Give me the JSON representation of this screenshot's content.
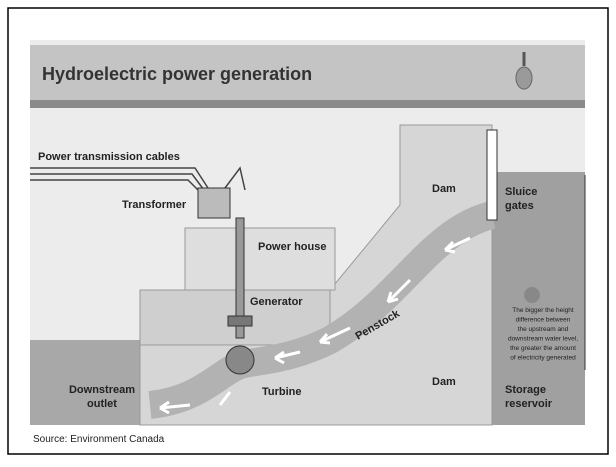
{
  "title": "Hydroelectric power generation",
  "labels": {
    "cables": [
      "Power transmission cables"
    ],
    "transformer": [
      "Transformer"
    ],
    "power_house": [
      "Power house"
    ],
    "dam_upper": [
      "Dam"
    ],
    "sluice_gates": [
      "Sluice",
      "gates"
    ],
    "generator": [
      "Generator"
    ],
    "penstock": [
      "Penstock"
    ],
    "turbine": [
      "Turbine"
    ],
    "downstream_outlet": [
      "Downstream",
      "outlet"
    ],
    "dam_lower": [
      "Dam"
    ],
    "storage_reservoir": [
      "Storage",
      "reservoir"
    ],
    "note": [
      "The bigger the height",
      "difference between",
      "the upstream and",
      "downstream water level,",
      "the greater the amount",
      "of electricity generated"
    ]
  },
  "source": "Source: Environment Canada"
}
